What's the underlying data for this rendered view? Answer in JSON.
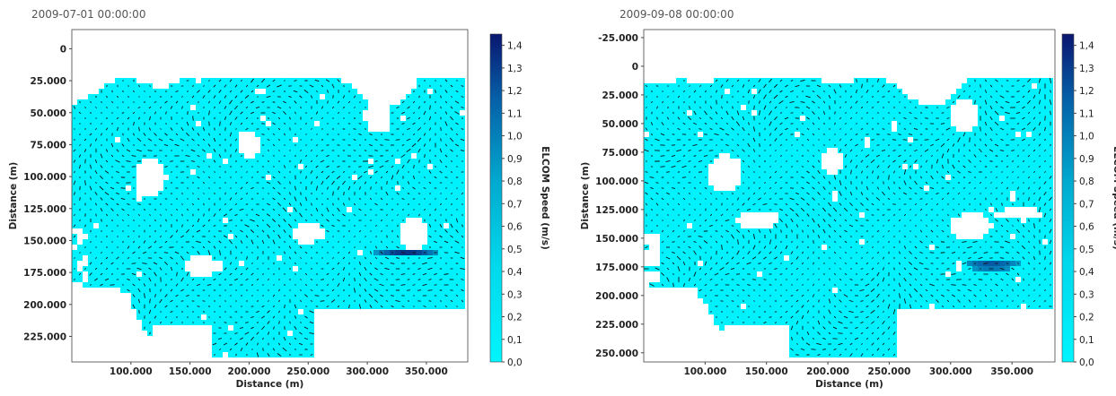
{
  "chart_data": [
    {
      "type": "heatmap",
      "title": "2009-07-01 00:00:00",
      "xlabel": "Distance (m)",
      "ylabel": "Distance (m)",
      "xlim": [
        50000,
        385000
      ],
      "ylim": [
        245000,
        -15000
      ],
      "x_ticks": [
        "100.000",
        "150.000",
        "200.000",
        "250.000",
        "300.000",
        "350.000"
      ],
      "x_tick_values": [
        100000,
        150000,
        200000,
        250000,
        300000,
        350000
      ],
      "y_ticks": [
        "0",
        "25.000",
        "50.000",
        "75.000",
        "100.000",
        "125.000",
        "150.000",
        "175.000",
        "200.000",
        "225.000"
      ],
      "y_tick_values": [
        0,
        25000,
        50000,
        75000,
        100000,
        125000,
        150000,
        175000,
        200000,
        225000
      ],
      "colorbar": {
        "label": "ELCOM Speed (m/s)",
        "range": [
          0,
          1.45
        ],
        "ticks": [
          "0,0",
          "0,1",
          "0,2",
          "0,3",
          "0,4",
          "0,5",
          "0,6",
          "0,7",
          "0,8",
          "0,9",
          "1,0",
          "1,1",
          "1,2",
          "1,3",
          "1,4"
        ],
        "tick_values": [
          0,
          0.1,
          0.2,
          0.3,
          0.4,
          0.5,
          0.6,
          0.7,
          0.8,
          0.9,
          1.0,
          1.1,
          1.2,
          1.3,
          1.4
        ],
        "color_low": "#00f5ff",
        "color_high": "#0a1670"
      },
      "vector_field": "black quiver arrows over a cyan speed field; strongest flow (~1.3–1.4 m/s) near x≈330.000–345.000, y≈158.000"
    },
    {
      "type": "heatmap",
      "title": "2009-09-08 00:00:00",
      "xlabel": "Distance (m)",
      "ylabel": "Distance (m)",
      "xlim": [
        50000,
        385000
      ],
      "ylim": [
        258000,
        -32000
      ],
      "x_ticks": [
        "100.000",
        "150.000",
        "200.000",
        "250.000",
        "300.000",
        "350.000"
      ],
      "x_tick_values": [
        100000,
        150000,
        200000,
        250000,
        300000,
        350000
      ],
      "y_ticks": [
        "-25.000",
        "0",
        "25.000",
        "50.000",
        "75.000",
        "100.000",
        "125.000",
        "150.000",
        "175.000",
        "200.000",
        "225.000",
        "250.000"
      ],
      "y_tick_values": [
        -25000,
        0,
        25000,
        50000,
        75000,
        100000,
        125000,
        150000,
        175000,
        200000,
        225000,
        250000
      ],
      "colorbar": {
        "label": "ELCOM Speed (m/s)",
        "range": [
          0,
          1.45
        ],
        "ticks": [
          "0,0",
          "0,1",
          "0,2",
          "0,3",
          "0,4",
          "0,5",
          "0,6",
          "0,7",
          "0,8",
          "0,9",
          "1,0",
          "1,1",
          "1,2",
          "1,3",
          "1,4"
        ],
        "tick_values": [
          0,
          0.1,
          0.2,
          0.3,
          0.4,
          0.5,
          0.6,
          0.7,
          0.8,
          0.9,
          1.0,
          1.1,
          1.2,
          1.3,
          1.4
        ],
        "color_low": "#00f5ff",
        "color_high": "#0a1670"
      },
      "vector_field": "black quiver arrows over a cyan speed field; eddies near x≈240.000–300.000, y≈100.000–175.000"
    }
  ]
}
